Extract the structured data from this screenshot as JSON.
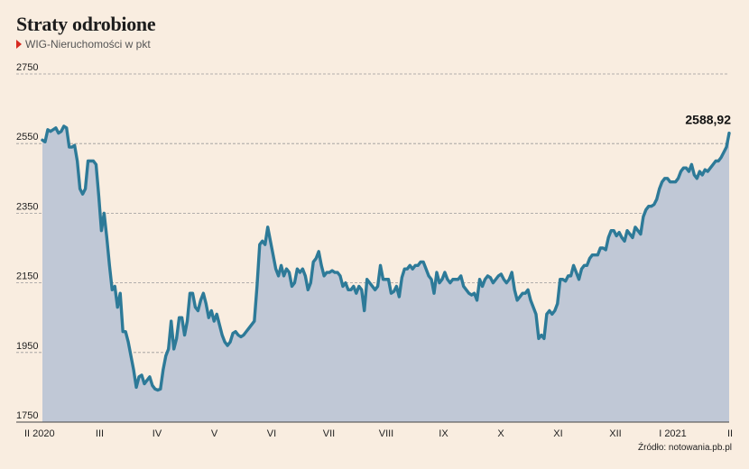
{
  "title": "Straty odrobione",
  "subtitle": "WIG-Nieruchomości w pkt",
  "source": "Źródło: notowania.pb.pl",
  "colors": {
    "line": "#2d7a98",
    "area": "#c0c8d6",
    "grid": "#9a9a9a",
    "background": "#f9ede0",
    "marker": "#d72a20"
  },
  "chart_data": {
    "type": "area",
    "title": "Straty odrobione",
    "subtitle": "WIG-Nieruchomości w pkt",
    "ylim": [
      1750,
      2750
    ],
    "yticks": [
      1750,
      1950,
      2150,
      2350,
      2550,
      2750
    ],
    "ytick_labels": [
      "1750",
      "1950",
      "2150",
      "2350",
      "2550",
      "2750"
    ],
    "grid": true,
    "xtick_labels": [
      "II 2020",
      "III",
      "IV",
      "V",
      "VI",
      "VII",
      "VIII",
      "IX",
      "X",
      "XI",
      "XII",
      "I 2021",
      "II"
    ],
    "last_value_label": "2588,92",
    "series": [
      {
        "values": [
          2560,
          2555,
          2590,
          2585,
          2590,
          2595,
          2580,
          2585,
          2600,
          2595,
          2540,
          2540,
          2545,
          2500,
          2420,
          2405,
          2420,
          2500,
          2500,
          2500,
          2490,
          2400,
          2300,
          2350,
          2280,
          2200,
          2130,
          2140,
          2080,
          2120,
          2010,
          2010,
          1980,
          1940,
          1900,
          1850,
          1880,
          1885,
          1860,
          1870,
          1880,
          1855,
          1845,
          1842,
          1845,
          1900,
          1940,
          1960,
          2040,
          1960,
          1990,
          2050,
          2050,
          2000,
          2040,
          2120,
          2120,
          2080,
          2070,
          2100,
          2120,
          2090,
          2050,
          2070,
          2040,
          2060,
          2030,
          2000,
          1980,
          1970,
          1980,
          2005,
          2010,
          2000,
          1995,
          2000,
          2010,
          2020,
          2030,
          2040,
          2140,
          2260,
          2270,
          2260,
          2310,
          2270,
          2230,
          2190,
          2170,
          2200,
          2170,
          2190,
          2180,
          2140,
          2150,
          2190,
          2180,
          2190,
          2170,
          2130,
          2150,
          2210,
          2220,
          2240,
          2200,
          2170,
          2180,
          2180,
          2185,
          2180,
          2180,
          2170,
          2140,
          2150,
          2130,
          2130,
          2140,
          2120,
          2140,
          2130,
          2070,
          2160,
          2150,
          2140,
          2130,
          2140,
          2200,
          2160,
          2160,
          2160,
          2120,
          2125,
          2140,
          2110,
          2165,
          2190,
          2190,
          2200,
          2190,
          2200,
          2200,
          2210,
          2210,
          2190,
          2170,
          2160,
          2120,
          2180,
          2150,
          2160,
          2180,
          2160,
          2150,
          2160,
          2160,
          2160,
          2170,
          2140,
          2130,
          2120,
          2115,
          2120,
          2100,
          2160,
          2140,
          2160,
          2170,
          2165,
          2150,
          2160,
          2170,
          2175,
          2160,
          2150,
          2160,
          2180,
          2130,
          2100,
          2110,
          2120,
          2120,
          2130,
          2100,
          2080,
          2060,
          1990,
          2000,
          1990,
          2060,
          2070,
          2060,
          2070,
          2090,
          2160,
          2160,
          2155,
          2170,
          2170,
          2200,
          2180,
          2160,
          2190,
          2200,
          2200,
          2220,
          2230,
          2230,
          2230,
          2250,
          2250,
          2245,
          2280,
          2300,
          2300,
          2285,
          2295,
          2280,
          2270,
          2300,
          2290,
          2280,
          2310,
          2300,
          2290,
          2340,
          2360,
          2370,
          2370,
          2375,
          2390,
          2420,
          2440,
          2450,
          2450,
          2440,
          2440,
          2440,
          2450,
          2470,
          2480,
          2480,
          2470,
          2490,
          2460,
          2450,
          2470,
          2460,
          2475,
          2470,
          2480,
          2490,
          2500,
          2500,
          2510,
          2525,
          2540,
          2580
        ]
      }
    ]
  }
}
